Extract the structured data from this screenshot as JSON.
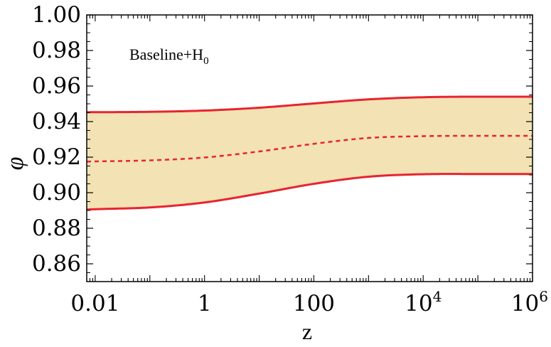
{
  "chart_data": {
    "type": "area",
    "xlabel": "z",
    "ylabel": "φ",
    "x_scale": "log",
    "xlim": [
      0.007,
      1000000
    ],
    "ylim": [
      0.85,
      1.0
    ],
    "x_ticks": [
      {
        "value": 0.01,
        "label": "0.01"
      },
      {
        "value": 1,
        "label": "1"
      },
      {
        "value": 100,
        "label": "100"
      },
      {
        "value": 10000,
        "base": "10",
        "exp": "4"
      },
      {
        "value": 1000000,
        "base": "10",
        "exp": "6"
      }
    ],
    "y_ticks": [
      {
        "value": 0.86,
        "label": "0.86"
      },
      {
        "value": 0.88,
        "label": "0.88"
      },
      {
        "value": 0.9,
        "label": "0.90"
      },
      {
        "value": 0.92,
        "label": "0.92"
      },
      {
        "value": 0.94,
        "label": "0.94"
      },
      {
        "value": 0.96,
        "label": "0.96"
      },
      {
        "value": 0.98,
        "label": "0.98"
      },
      {
        "value": 1.0,
        "label": "1.00"
      }
    ],
    "annotation": {
      "text": "Baseline+H",
      "subscript": "0"
    },
    "x": [
      0.007,
      0.01,
      0.1,
      1,
      10,
      100,
      1000,
      10000,
      100000,
      1000000
    ],
    "series": [
      {
        "role": "upper",
        "style": "solid",
        "values": [
          0.9453,
          0.9453,
          0.9455,
          0.9462,
          0.9478,
          0.9502,
          0.9525,
          0.9537,
          0.954,
          0.954
        ]
      },
      {
        "role": "central",
        "style": "dashed",
        "values": [
          0.9175,
          0.9176,
          0.9182,
          0.9198,
          0.9232,
          0.9275,
          0.9308,
          0.9318,
          0.932,
          0.932
        ]
      },
      {
        "role": "lower",
        "style": "solid",
        "values": [
          0.8905,
          0.8907,
          0.8917,
          0.8945,
          0.8995,
          0.905,
          0.909,
          0.9104,
          0.9105,
          0.9105
        ]
      }
    ],
    "band_color": "#f2e2b4",
    "line_color": "#e8242f",
    "grid": false
  }
}
